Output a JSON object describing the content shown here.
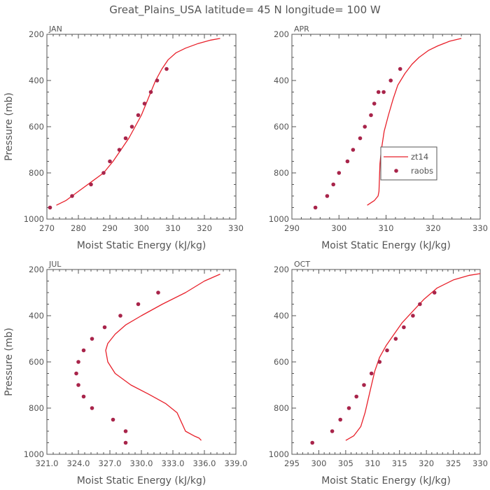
{
  "title": "Great_Plains_USA   latitude= 45 N longitude= 100 W",
  "colors": {
    "model": "#e8202a",
    "obs": "#a8244a",
    "axis": "#555555",
    "text": "#555555"
  },
  "legend": {
    "panel": "APR",
    "model": "zt14",
    "obs": "raobs"
  },
  "chart_data": [
    {
      "type": "line",
      "panel": "JAN",
      "xlabel": "Moist Static Energy (kJ/kg)",
      "ylabel": "Pressure (mb)",
      "xlim": [
        270,
        330
      ],
      "ylim": [
        1000,
        200
      ],
      "xticks": [
        "270",
        "280",
        "290",
        "300",
        "310",
        "320",
        "330"
      ],
      "xtick_values": [
        270,
        280,
        290,
        300,
        310,
        320,
        330
      ],
      "yticks": [
        "1000",
        "800",
        "600",
        "400",
        "200"
      ],
      "ytick_values": [
        1000,
        800,
        600,
        400,
        200
      ],
      "series": [
        {
          "name": "zt14",
          "style": "line",
          "x": [
            273.0,
            276.0,
            280.0,
            284.0,
            288.0,
            291.0,
            293.5,
            296.0,
            298.0,
            300.0,
            301.5,
            303.0,
            304.5,
            306.5,
            308.5,
            311.0,
            314.0,
            318.0,
            322.0,
            325.0
          ],
          "y": [
            940,
            920,
            880,
            840,
            800,
            750,
            700,
            650,
            600,
            550,
            500,
            450,
            400,
            350,
            310,
            280,
            260,
            240,
            225,
            218
          ]
        },
        {
          "name": "raobs",
          "style": "markers",
          "x": [
            271.0,
            278.0,
            284.0,
            288.0,
            290.0,
            293.0,
            295.0,
            297.0,
            299.0,
            301.0,
            303.0,
            305.0,
            308.0
          ],
          "y": [
            950,
            900,
            850,
            800,
            750,
            700,
            650,
            600,
            550,
            500,
            450,
            400,
            350
          ]
        }
      ]
    },
    {
      "type": "line",
      "panel": "APR",
      "xlabel": "Moist Static Energy (kJ/kg)",
      "ylabel": "",
      "xlim": [
        290,
        330
      ],
      "ylim": [
        1000,
        200
      ],
      "xticks": [
        "290",
        "300",
        "310",
        "320",
        "330"
      ],
      "xtick_values": [
        290,
        300,
        310,
        320,
        330
      ],
      "yticks": [
        "1000",
        "800",
        "600",
        "400",
        "200"
      ],
      "ytick_values": [
        1000,
        800,
        600,
        400,
        200
      ],
      "series": [
        {
          "name": "zt14",
          "style": "line",
          "x": [
            306.0,
            307.5,
            308.3,
            308.5,
            308.6,
            308.7,
            309.0,
            309.6,
            310.5,
            311.5,
            312.5,
            314.0,
            315.5,
            317.0,
            319.0,
            321.0,
            323.5,
            326.0
          ],
          "y": [
            940,
            920,
            900,
            880,
            820,
            760,
            700,
            620,
            550,
            480,
            420,
            370,
            330,
            300,
            270,
            250,
            230,
            218
          ]
        },
        {
          "name": "raobs",
          "style": "markers",
          "x": [
            295.0,
            297.5,
            298.8,
            300.0,
            301.8,
            303.0,
            304.5,
            305.5,
            306.8,
            307.5,
            308.4,
            309.5,
            311.0,
            313.0
          ],
          "y": [
            950,
            900,
            850,
            800,
            750,
            700,
            650,
            600,
            550,
            500,
            450,
            450,
            400,
            350
          ]
        }
      ]
    },
    {
      "type": "line",
      "panel": "JUL",
      "xlabel": "Moist Static Energy (kJ/kg)",
      "ylabel": "Pressure (mb)",
      "xlim": [
        321,
        339
      ],
      "ylim": [
        1000,
        200
      ],
      "xticks": [
        "321.0",
        "324.0",
        "327.0",
        "330.0",
        "333.0",
        "336.0",
        "339.0"
      ],
      "xtick_values": [
        321,
        324,
        327,
        330,
        333,
        336,
        339
      ],
      "yticks": [
        "1000",
        "800",
        "600",
        "400",
        "200"
      ],
      "ytick_values": [
        1000,
        800,
        600,
        400,
        200
      ],
      "series": [
        {
          "name": "zt14",
          "style": "line",
          "x": [
            335.7,
            335.5,
            335.0,
            334.2,
            333.8,
            333.4,
            332.3,
            330.7,
            329.0,
            327.5,
            326.8,
            326.6,
            326.8,
            327.5,
            328.5,
            330.0,
            332.0,
            334.2,
            336.0,
            337.5
          ],
          "y": [
            940,
            930,
            920,
            900,
            860,
            820,
            780,
            740,
            700,
            650,
            600,
            550,
            520,
            480,
            440,
            400,
            350,
            300,
            250,
            220
          ]
        },
        {
          "name": "raobs",
          "style": "markers",
          "x": [
            328.5,
            328.5,
            327.3,
            325.3,
            324.5,
            324.0,
            323.8,
            324.0,
            324.5,
            325.3,
            326.5,
            328.0,
            329.7,
            331.6
          ],
          "y": [
            950,
            900,
            850,
            800,
            750,
            700,
            650,
            600,
            550,
            500,
            450,
            400,
            350,
            300
          ]
        }
      ]
    },
    {
      "type": "line",
      "panel": "OCT",
      "xlabel": "Moist Static Energy (kJ/kg)",
      "ylabel": "",
      "xlim": [
        295,
        330
      ],
      "ylim": [
        1000,
        200
      ],
      "xticks": [
        "295",
        "300",
        "305",
        "310",
        "315",
        "320",
        "325",
        "330"
      ],
      "xtick_values": [
        295,
        300,
        305,
        310,
        315,
        320,
        325,
        330
      ],
      "yticks": [
        "1000",
        "800",
        "600",
        "400",
        "200"
      ],
      "ytick_values": [
        1000,
        800,
        600,
        400,
        200
      ],
      "series": [
        {
          "name": "zt14",
          "style": "line",
          "x": [
            305.0,
            306.5,
            307.8,
            308.6,
            309.2,
            309.8,
            310.4,
            311.3,
            312.5,
            314.0,
            315.5,
            317.5,
            319.5,
            322.0,
            325.0,
            328.0,
            330.0
          ],
          "y": [
            940,
            920,
            880,
            820,
            760,
            700,
            640,
            580,
            530,
            480,
            430,
            380,
            330,
            280,
            245,
            225,
            218
          ]
        },
        {
          "name": "raobs",
          "style": "markers",
          "x": [
            298.8,
            302.5,
            304.0,
            305.6,
            307.0,
            308.4,
            309.8,
            311.3,
            312.7,
            314.3,
            315.8,
            317.5,
            318.8,
            321.5
          ],
          "y": [
            950,
            900,
            850,
            800,
            750,
            700,
            650,
            600,
            550,
            500,
            450,
            400,
            350,
            300
          ]
        }
      ]
    }
  ]
}
